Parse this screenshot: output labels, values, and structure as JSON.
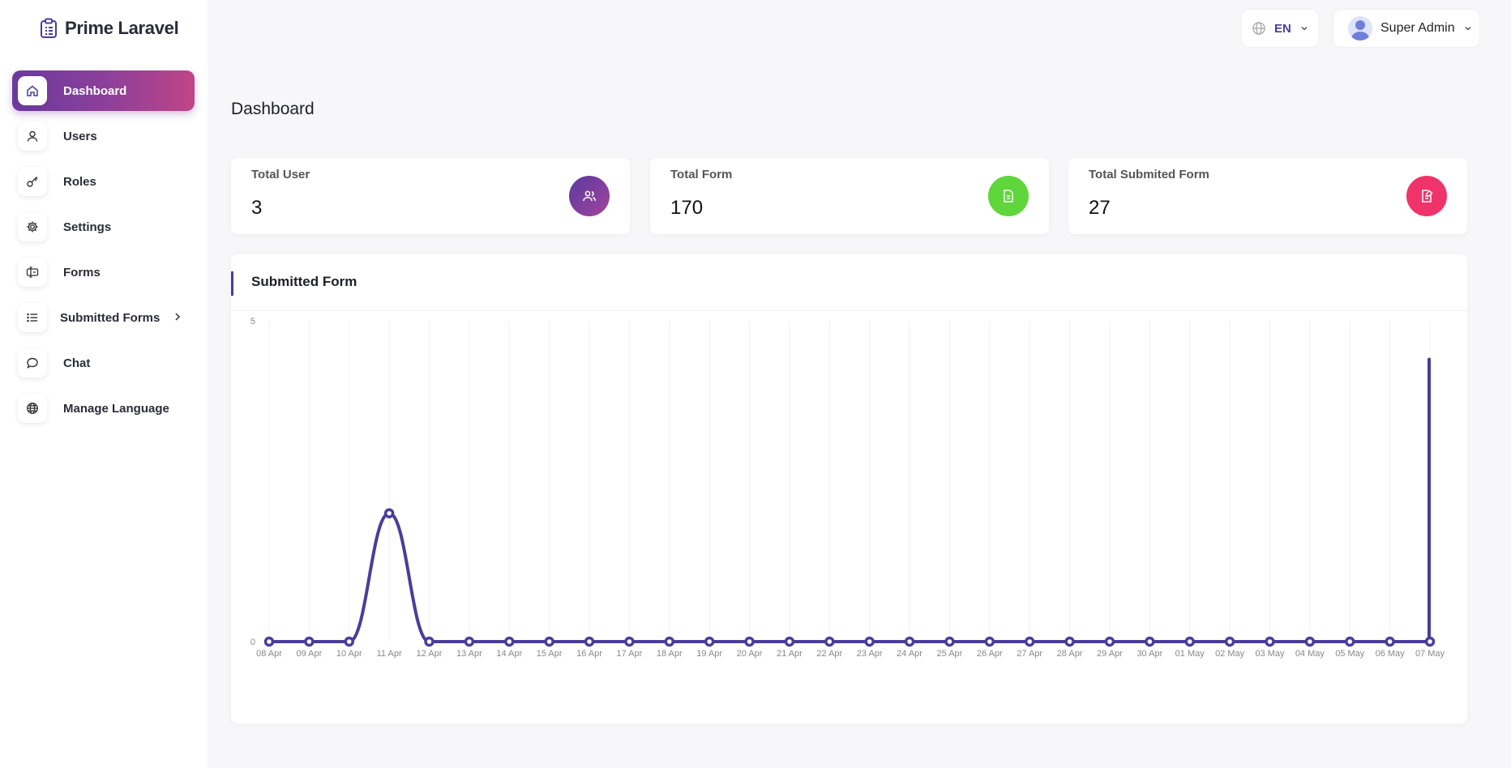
{
  "brand": {
    "name": "Prime Laravel",
    "icon": "clipboard-list-icon"
  },
  "sidebar": {
    "items": [
      {
        "label": "Dashboard",
        "icon": "home-icon",
        "active": true
      },
      {
        "label": "Users",
        "icon": "user-icon"
      },
      {
        "label": "Roles",
        "icon": "key-icon"
      },
      {
        "label": "Settings",
        "icon": "gear-icon"
      },
      {
        "label": "Forms",
        "icon": "form-icon"
      },
      {
        "label": "Submitted Forms",
        "icon": "list-icon",
        "has_submenu": true
      },
      {
        "label": "Chat",
        "icon": "chat-icon"
      },
      {
        "label": "Manage Language",
        "icon": "globe-icon"
      }
    ]
  },
  "topbar": {
    "language": {
      "value": "EN",
      "icon": "globe-icon"
    },
    "user": {
      "name": "Super Admin"
    }
  },
  "main": {
    "title": "Dashboard",
    "stats": [
      {
        "label": "Total User",
        "value": "3",
        "icon": "users-icon",
        "color": "#7a3fa0"
      },
      {
        "label": "Total Form",
        "value": "170",
        "icon": "file-icon",
        "color": "#5fd63b"
      },
      {
        "label": "Total Submited Form",
        "value": "27",
        "icon": "file-edit-icon",
        "color": "#f0336a"
      }
    ],
    "chart_panel": {
      "title": "Submitted Form"
    }
  },
  "chart_data": {
    "type": "line",
    "categories": [
      "08 Apr",
      "09 Apr",
      "10 Apr",
      "11 Apr",
      "12 Apr",
      "13 Apr",
      "14 Apr",
      "15 Apr",
      "16 Apr",
      "17 Apr",
      "18 Apr",
      "19 Apr",
      "20 Apr",
      "21 Apr",
      "22 Apr",
      "23 Apr",
      "24 Apr",
      "25 Apr",
      "26 Apr",
      "27 Apr",
      "28 Apr",
      "29 Apr",
      "30 Apr",
      "01 May",
      "02 May",
      "03 May",
      "04 May",
      "05 May",
      "06 May",
      "07 May"
    ],
    "values": [
      0,
      0,
      0,
      2,
      0,
      0,
      0,
      0,
      0,
      0,
      0,
      0,
      0,
      0,
      0,
      0,
      0,
      0,
      0,
      0,
      0,
      0,
      0,
      0,
      0,
      0,
      0,
      0,
      0,
      0
    ],
    "ylim": [
      0,
      5
    ],
    "yticks": [
      "0",
      "5"
    ],
    "grid": "vertical",
    "line_color": "#4b3d9a",
    "final_spike": 4.4
  }
}
